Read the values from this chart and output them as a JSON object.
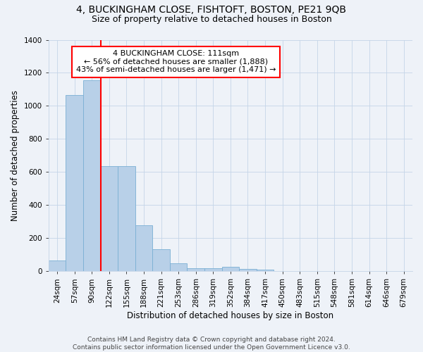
{
  "title": "4, BUCKINGHAM CLOSE, FISHTOFT, BOSTON, PE21 9QB",
  "subtitle": "Size of property relative to detached houses in Boston",
  "xlabel": "Distribution of detached houses by size in Boston",
  "ylabel": "Number of detached properties",
  "bar_color": "#b8d0e8",
  "bar_edge_color": "#7aafd4",
  "background_color": "#eef2f8",
  "categories": [
    "24sqm",
    "57sqm",
    "90sqm",
    "122sqm",
    "155sqm",
    "188sqm",
    "221sqm",
    "253sqm",
    "286sqm",
    "319sqm",
    "352sqm",
    "384sqm",
    "417sqm",
    "450sqm",
    "483sqm",
    "515sqm",
    "548sqm",
    "581sqm",
    "614sqm",
    "646sqm",
    "679sqm"
  ],
  "values": [
    65,
    1065,
    1155,
    635,
    635,
    280,
    135,
    48,
    20,
    20,
    25,
    15,
    10,
    0,
    0,
    0,
    0,
    0,
    0,
    0,
    0
  ],
  "ylim": [
    0,
    1400
  ],
  "yticks": [
    0,
    200,
    400,
    600,
    800,
    1000,
    1200,
    1400
  ],
  "property_line_x": 2.5,
  "annotation_text": "4 BUCKINGHAM CLOSE: 111sqm\n← 56% of detached houses are smaller (1,888)\n43% of semi-detached houses are larger (1,471) →",
  "annotation_box_color": "white",
  "annotation_box_edge_color": "red",
  "footer_line1": "Contains HM Land Registry data © Crown copyright and database right 2024.",
  "footer_line2": "Contains public sector information licensed under the Open Government Licence v3.0.",
  "grid_color": "#c5d5e8",
  "title_fontsize": 10,
  "subtitle_fontsize": 9,
  "axis_label_fontsize": 8.5,
  "tick_fontsize": 7.5,
  "annotation_fontsize": 8,
  "footer_fontsize": 6.5
}
